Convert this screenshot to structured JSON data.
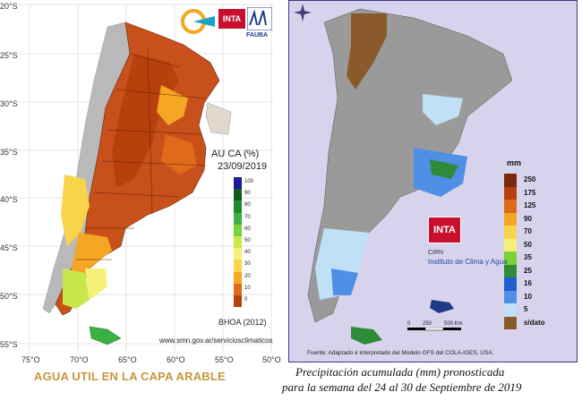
{
  "left_panel": {
    "caption": "AGUA UTIL EN LA CAPA ARABLE",
    "legend_title": "AU CA (%)",
    "legend_date": "23/09/2019",
    "legend_source": "BHOA (2012)",
    "credit": "www.smn.gov.ar/serviciosclimaticos",
    "logos": [
      "INTA",
      "FAUBA"
    ],
    "lat_labels": [
      "20°S",
      "25°S",
      "30°S",
      "35°S",
      "40°S",
      "45°S",
      "50°S",
      "55°S"
    ],
    "lon_labels": [
      "75°O",
      "70°O",
      "65°O",
      "60°O",
      "55°O",
      "50°O"
    ],
    "scale_ticks": [
      "100",
      "90",
      "80",
      "70",
      "60",
      "50",
      "40",
      "30",
      "20",
      "10",
      "0"
    ],
    "scale_colors": [
      "#1a1aa0",
      "#0b5d1e",
      "#1f8a2e",
      "#3cb043",
      "#7ccf3a",
      "#c8e84a",
      "#f6f07a",
      "#f9d44a",
      "#f5a623",
      "#e06a1a",
      "#b8400c"
    ]
  },
  "right_panel": {
    "unit_label": "mm",
    "scale_ticks": [
      "250",
      "175",
      "125",
      "90",
      "70",
      "50",
      "35",
      "25",
      "16",
      "10",
      "5",
      "s/dato"
    ],
    "scale_colors": [
      "#7a2a0c",
      "#b8400c",
      "#e06a1a",
      "#f5a623",
      "#f9d44a",
      "#f6f07a",
      "#7ccf3a",
      "#2e8b3a",
      "#1f5fd0",
      "#4f8fe6",
      "#bfe0f5",
      "#8b5a2b"
    ],
    "logo": "INTA",
    "cinta": "CIRN",
    "institute": "Instituto de Clima y Agua",
    "source": "Fuente: Adaptado e interpretado del Modelo GFS del COLA-IGES, USA.",
    "scalebar": [
      "0",
      "250",
      "500 Km"
    ],
    "caption_line1": "Precipitación acumulada (mm) pronosticada",
    "caption_line2": "para la semana del 24 al 30 de Septiembre de 2019"
  }
}
